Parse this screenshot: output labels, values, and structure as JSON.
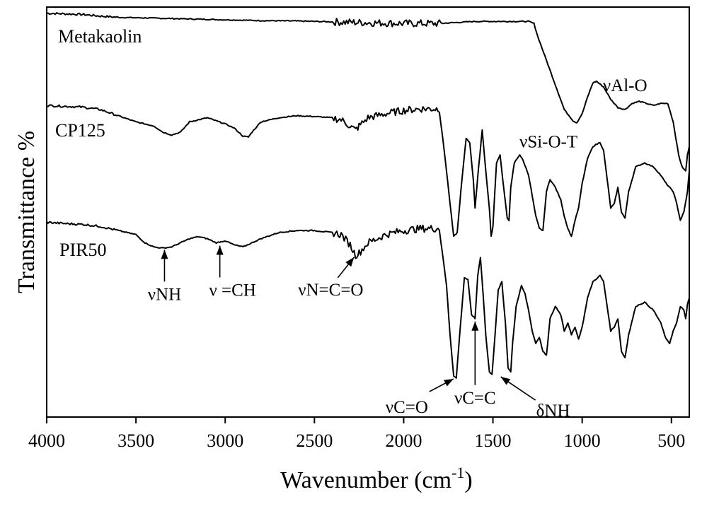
{
  "chart_data": {
    "type": "line",
    "title": "",
    "xlabel": "Wavenumber (cm",
    "xlabel_sup": "-1",
    "xlabel_close": ")",
    "ylabel": "Transmittance %",
    "xlim": [
      4000,
      400
    ],
    "x_reversed": true,
    "ylim": [
      0,
      100
    ],
    "y_ticks_shown": false,
    "grid": false,
    "legend": "none",
    "x_ticks": [
      "4000",
      "3500",
      "3000",
      "2500",
      "2000",
      "1500",
      "1000",
      "500"
    ],
    "series": [
      {
        "name": "Metakaolin",
        "x": [
          4000,
          3800,
          3700,
          3600,
          3400,
          3200,
          3000,
          2800,
          2600,
          2400,
          2200,
          2000,
          1800,
          1600,
          1400,
          1300,
          1270,
          1250,
          1200,
          1150,
          1100,
          1050,
          1030,
          1000,
          970,
          940,
          920,
          880,
          840,
          800,
          760,
          720,
          680,
          640,
          600,
          560,
          520,
          490,
          460,
          440,
          420,
          410,
          400
        ],
        "y": [
          98.5,
          98.2,
          97.8,
          97.5,
          97.3,
          97.1,
          96.9,
          96.7,
          96.6,
          96.4,
          96.2,
          96.0,
          96.0,
          96.5,
          96.5,
          96.5,
          96.0,
          93.0,
          87.0,
          81.0,
          75.0,
          72.2,
          71.8,
          74.0,
          78.0,
          81.5,
          81.9,
          80.5,
          77.5,
          75.5,
          75.0,
          76.5,
          77.0,
          76.5,
          76.0,
          76.5,
          76.5,
          72.0,
          64.0,
          61.0,
          60.0,
          64.0,
          66.0
        ]
      },
      {
        "name": "CP125",
        "x": [
          4000,
          3900,
          3800,
          3700,
          3600,
          3500,
          3400,
          3350,
          3300,
          3250,
          3200,
          3100,
          3000,
          2950,
          2900,
          2870,
          2850,
          2800,
          2700,
          2600,
          2500,
          2400,
          2350,
          2300,
          2270,
          2250,
          2200,
          2100,
          2000,
          1900,
          1800,
          1760,
          1740,
          1720,
          1700,
          1680,
          1650,
          1630,
          1610,
          1600,
          1580,
          1560,
          1540,
          1520,
          1510,
          1500,
          1480,
          1460,
          1440,
          1420,
          1410,
          1400,
          1380,
          1350,
          1330,
          1300,
          1280,
          1260,
          1240,
          1220,
          1200,
          1180,
          1150,
          1120,
          1100,
          1080,
          1060,
          1040,
          1020,
          1000,
          970,
          940,
          900,
          880,
          860,
          840,
          820,
          800,
          780,
          760,
          740,
          700,
          650,
          600,
          560,
          530,
          510,
          490,
          470,
          450,
          430,
          410,
          400
        ],
        "y": [
          76.0,
          75.8,
          75.6,
          75.0,
          73.5,
          72.0,
          71.0,
          69.5,
          68.8,
          69.5,
          72.0,
          73.0,
          71.5,
          70.5,
          68.5,
          68.3,
          69.5,
          72.0,
          73.0,
          73.5,
          73.3,
          73.0,
          72.5,
          71.0,
          70.0,
          71.0,
          73.0,
          74.0,
          74.8,
          75.2,
          75.2,
          60.0,
          52.0,
          44.0,
          45.0,
          55.0,
          68.0,
          67.0,
          58.0,
          51.0,
          61.0,
          70.0,
          60.0,
          51.0,
          44.0,
          46.5,
          62.0,
          64.0,
          56.0,
          48.5,
          48.0,
          56.0,
          62.0,
          64.0,
          62.5,
          59.0,
          54.0,
          49.0,
          46.0,
          45.5,
          55.0,
          58.0,
          56.0,
          53.0,
          49.0,
          46.0,
          44.0,
          48.0,
          51.0,
          57.0,
          63.0,
          66.0,
          67.0,
          65.0,
          58.0,
          51.0,
          52.0,
          56.0,
          50.0,
          48.5,
          55.0,
          61.0,
          62.0,
          61.0,
          59.0,
          57.0,
          56.0,
          55.0,
          52.0,
          48.0,
          50.0,
          55.0,
          60.0
        ]
      },
      {
        "name": "PIR50",
        "x": [
          4000,
          3900,
          3800,
          3700,
          3600,
          3500,
          3450,
          3400,
          3350,
          3300,
          3250,
          3200,
          3150,
          3100,
          3050,
          3030,
          3000,
          2950,
          2900,
          2800,
          2700,
          2600,
          2500,
          2400,
          2350,
          2300,
          2270,
          2250,
          2200,
          2100,
          2000,
          1900,
          1800,
          1760,
          1740,
          1720,
          1705,
          1690,
          1660,
          1640,
          1620,
          1600,
          1585,
          1570,
          1555,
          1540,
          1520,
          1505,
          1490,
          1470,
          1450,
          1430,
          1415,
          1400,
          1390,
          1370,
          1340,
          1320,
          1300,
          1280,
          1260,
          1240,
          1220,
          1200,
          1180,
          1150,
          1120,
          1100,
          1080,
          1060,
          1040,
          1020,
          1000,
          970,
          940,
          900,
          880,
          860,
          840,
          820,
          800,
          780,
          760,
          740,
          700,
          650,
          600,
          560,
          530,
          510,
          490,
          470,
          450,
          430,
          420,
          410,
          400
        ],
        "y": [
          47.5,
          47.2,
          47.0,
          46.5,
          45.5,
          44.5,
          42.5,
          41.5,
          41.2,
          41.5,
          42.5,
          43.5,
          44.0,
          43.5,
          42.5,
          42.7,
          43.0,
          42.0,
          41.5,
          43.5,
          45.0,
          45.5,
          45.5,
          45.0,
          44.5,
          42.0,
          39.5,
          40.0,
          42.5,
          44.5,
          45.5,
          46.0,
          46.0,
          32.0,
          20.0,
          10.0,
          9.5,
          18.0,
          34.0,
          33.5,
          25.0,
          24.0,
          34.5,
          39.0,
          30.0,
          20.0,
          11.0,
          10.5,
          19.0,
          31.0,
          33.0,
          23.0,
          12.0,
          11.0,
          18.0,
          27.0,
          32.0,
          30.0,
          26.0,
          21.0,
          18.0,
          19.5,
          16.0,
          15.0,
          24.0,
          27.0,
          25.0,
          21.0,
          23.0,
          20.0,
          22.0,
          19.0,
          22.0,
          29.0,
          33.0,
          34.5,
          33.0,
          27.0,
          21.0,
          22.0,
          24.0,
          16.0,
          14.5,
          20.0,
          27.0,
          28.0,
          26.0,
          23.0,
          19.0,
          18.0,
          21.0,
          23.0,
          27.0,
          26.0,
          24.0,
          27.5,
          29.0
        ]
      }
    ],
    "annotations": [
      {
        "text": "νNH",
        "target": [
          3340,
          41.5
        ],
        "label_pos": "below",
        "arrow": "up"
      },
      {
        "text": "ν =CH",
        "target": [
          3030,
          42.5
        ],
        "label_pos": "below",
        "arrow": "up"
      },
      {
        "text": "νN=C=O",
        "target": [
          2270,
          39.5
        ],
        "label_pos": "below-left",
        "arrow": "up-right"
      },
      {
        "text": "νC=O",
        "target": [
          1705,
          10.0
        ],
        "label_pos": "below-left",
        "arrow": "up-right"
      },
      {
        "text": "νC=C",
        "target": [
          1600,
          24.0
        ],
        "label_pos": "below",
        "arrow": "up"
      },
      {
        "text": "δNH",
        "target": [
          1480,
          10.5
        ],
        "label_pos": "below-right",
        "arrow": "up-left"
      },
      {
        "text": "νSi-O-T",
        "target": [
          1030,
          71.8
        ],
        "label_pos": "below",
        "arrow": "none"
      },
      {
        "text": "νAl-O",
        "target": [
          760,
          75.0
        ],
        "label_pos": "near",
        "arrow": "none"
      }
    ]
  }
}
